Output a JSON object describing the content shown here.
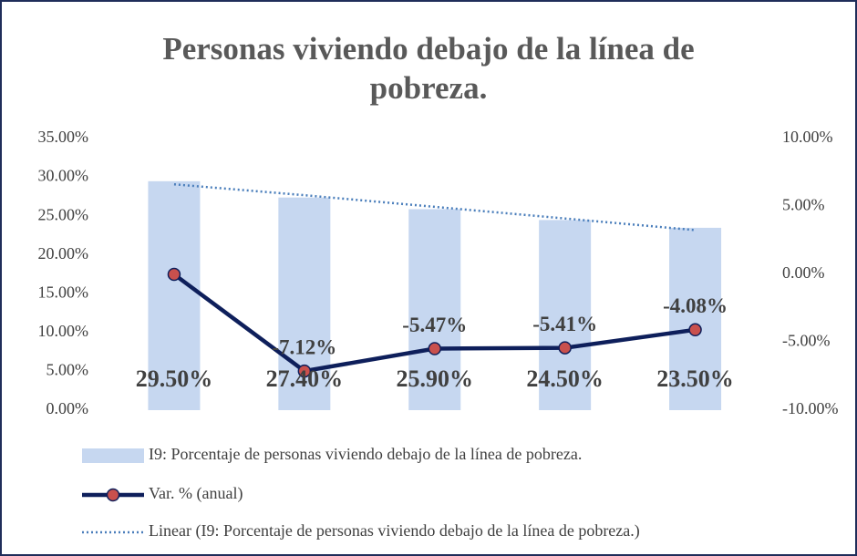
{
  "chart_data": {
    "type": "combo",
    "title": "Personas viviendo debajo de la línea de pobreza.",
    "categories": [
      null,
      null,
      null,
      null,
      null
    ],
    "series": [
      {
        "name": "I9: Porcentaje de personas viviendo debajo de la línea de pobreza.",
        "type": "bar",
        "color": "#c6d7f0",
        "values": [
          29.5,
          27.4,
          25.9,
          24.5,
          23.5
        ],
        "value_labels": [
          "29.50%",
          "27.40%",
          "25.90%",
          "24.50%",
          "23.50%"
        ]
      },
      {
        "name": "Var. % (anual)",
        "type": "line",
        "axis": "y2",
        "color": "#0e1f5b",
        "marker_color": "#c9504d",
        "values": [
          0,
          -7.12,
          -5.47,
          -5.41,
          -4.08
        ],
        "value_labels": [
          null,
          "-7.12%",
          "-5.47%",
          "-5.41%",
          "-4.08%"
        ]
      },
      {
        "name": "Linear (I9: Porcentaje de personas viviendo debajo de la línea de pobreza.)",
        "type": "trendline",
        "color": "#4a7ebb",
        "values": [
          29.1,
          27.7,
          26.2,
          24.7,
          23.2
        ]
      }
    ],
    "ylim": [
      0,
      35
    ],
    "yticks": [
      {
        "value": 0,
        "label": "0.00%"
      },
      {
        "value": 5,
        "label": "5.00%"
      },
      {
        "value": 10,
        "label": "10.00%"
      },
      {
        "value": 15,
        "label": "15.00%"
      },
      {
        "value": 20,
        "label": "20.00%"
      },
      {
        "value": 25,
        "label": "25.00%"
      },
      {
        "value": 30,
        "label": "30.00%"
      },
      {
        "value": 35,
        "label": "35.00%"
      }
    ],
    "y2lim": [
      -10,
      10
    ],
    "y2ticks": [
      {
        "value": -10,
        "label": "-10.00%"
      },
      {
        "value": -5,
        "label": "-5.00%"
      },
      {
        "value": 0,
        "label": "0.00%"
      },
      {
        "value": 5,
        "label": "5.00%"
      },
      {
        "value": 10,
        "label": "10.00%"
      }
    ],
    "legend": "bottom",
    "grid": false
  }
}
